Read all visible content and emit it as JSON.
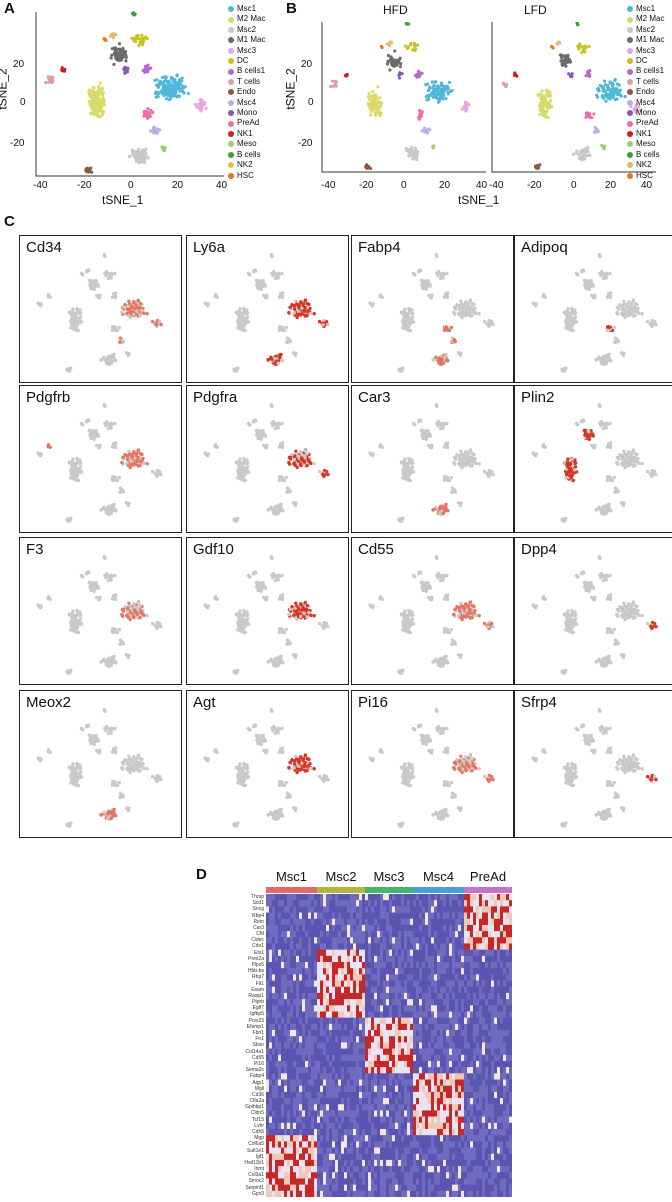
{
  "panels": {
    "A": "A",
    "B": "B",
    "C": "C",
    "D": "D"
  },
  "tsne": {
    "xlabel": "tSNE_1",
    "ylabel": "tSNE_2",
    "xticks": [
      "-40",
      "-20",
      "0",
      "20",
      "40"
    ],
    "yticks": [
      "20",
      "0",
      "-20"
    ],
    "facets": [
      "HFD",
      "LFD"
    ],
    "clusters": [
      {
        "name": "Msc1",
        "color": "#4fb8d8"
      },
      {
        "name": "M2 Mac",
        "color": "#d9da6a"
      },
      {
        "name": "Msc2",
        "color": "#c8c8c8"
      },
      {
        "name": "M1 Mac",
        "color": "#6b6b6b"
      },
      {
        "name": "Msc3",
        "color": "#e6a6e0"
      },
      {
        "name": "DC",
        "color": "#c7c21f"
      },
      {
        "name": "B cells1",
        "color": "#b46ac9"
      },
      {
        "name": "T cells",
        "color": "#d9a1a6"
      },
      {
        "name": "Endo",
        "color": "#8a5a3c"
      },
      {
        "name": "Msc4",
        "color": "#b8b0e8"
      },
      {
        "name": "Mono",
        "color": "#8a57b5"
      },
      {
        "name": "PreAd",
        "color": "#ea6fa8"
      },
      {
        "name": "NK1",
        "color": "#cc1f1f"
      },
      {
        "name": "Meso",
        "color": "#9ccc6b"
      },
      {
        "name": "B cells",
        "color": "#3e9b3e"
      },
      {
        "name": "NK2",
        "color": "#e6b86a"
      },
      {
        "name": "HSC",
        "color": "#e07a20"
      }
    ]
  },
  "features": [
    "Cd34",
    "Ly6a",
    "Fabp4",
    "Adipoq",
    "Pdgfrb",
    "Pdgfra",
    "Car3",
    "Plin2",
    "F3",
    "Gdf10",
    "Cd55",
    "Dpp4",
    "Meox2",
    "Agt",
    "Pi16",
    "Sfrp4"
  ],
  "heatmap": {
    "clusters": [
      {
        "name": "Msc1",
        "color": "#e36a6a"
      },
      {
        "name": "Msc2",
        "color": "#b6b43a"
      },
      {
        "name": "Msc3",
        "color": "#46b36a"
      },
      {
        "name": "Msc4",
        "color": "#4a9fd8"
      },
      {
        "name": "PreAd",
        "color": "#c672c9"
      }
    ],
    "genes": [
      "Thrsp",
      "Scd1",
      "Sncg",
      "Rbp4",
      "Retn",
      "Car3",
      "Cfd",
      "Cidec",
      "Cdo1",
      "Ets1",
      "Prex2a",
      "Plps5",
      "Hbb-bs",
      "Rbp7",
      "Flt1",
      "Esam",
      "Rasip1",
      "Ptprb",
      "Egfl7",
      "Igfbp5",
      "Prss23",
      "Efemp1",
      "Fbn1",
      "Fn1",
      "Sbsn",
      "Col14a1",
      "Cd55",
      "Pi16",
      "Sema3c",
      "Fabp4",
      "Aqp1",
      "Mgll",
      "Cd36",
      "Cfla2a",
      "Gpihbp1",
      "Cldn5",
      "Tcf15",
      "Lvbr",
      "Cdh5",
      "Mgp",
      "Col6a5",
      "Sult1e1",
      "Igf1",
      "Hsd11b1",
      "Inmt",
      "Col3a1",
      "Smoc2",
      "Serpinf1",
      "Gpx3"
    ]
  }
}
